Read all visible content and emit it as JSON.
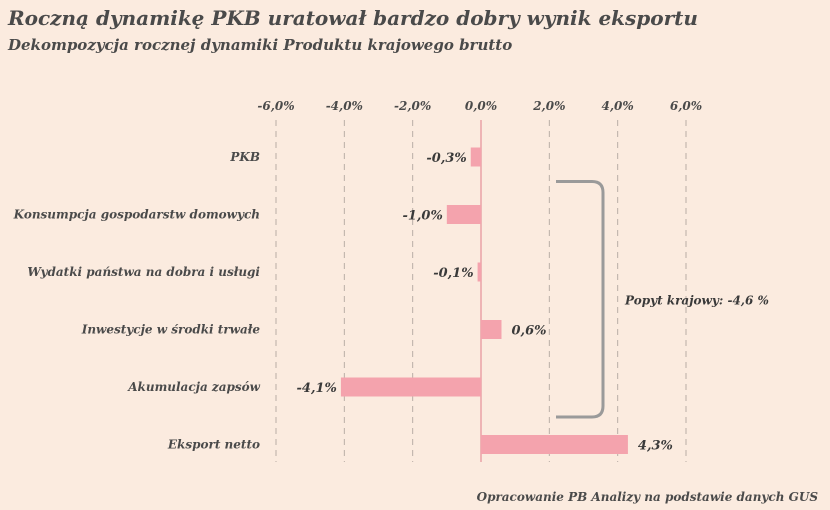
{
  "header": {
    "title": "Roczną dynamikę PKB uratował bardzo dobry wynik eksportu",
    "subtitle": "Dekompozycja rocznej dynamiki Produktu krajowego brutto"
  },
  "footer": {
    "source": "Opracowanie PB Analizy na podstawie danych GUS"
  },
  "colors": {
    "background": "#fbebdf",
    "bar": "#f4a3ad",
    "grid": "#b9aea6",
    "zero_line": "#e58f99",
    "bracket": "#9a9a9a"
  },
  "chart_data": {
    "type": "bar",
    "orientation": "horizontal",
    "title": "Roczną dynamikę PKB uratował bardzo dobry wynik eksportu",
    "subtitle": "Dekompozycja rocznej dynamiki Produktu krajowego brutto",
    "categories": [
      "PKB",
      "Konsumpcja gospodarstw domowych",
      "Wydatki państwa na dobra i usługi",
      "Inwestycje w środki trwałe",
      "Akumulacja zapsów",
      "Eksport netto"
    ],
    "values": [
      -0.3,
      -1.0,
      -0.1,
      0.6,
      -4.1,
      4.3
    ],
    "value_labels": [
      "-0,3%",
      "-1,0%",
      "-0,1%",
      "0,6%",
      "-4,1%",
      "4,3%"
    ],
    "xlim": [
      -6,
      6
    ],
    "ticks": [
      -6,
      -4,
      -2,
      0,
      2,
      4,
      6
    ],
    "tick_labels": [
      "-6,0%",
      "-4,0%",
      "-2,0%",
      "0,0%",
      "2,0%",
      "4,0%",
      "6,0%"
    ],
    "axis_position": "top",
    "grid": "vertical dashed",
    "annotation": {
      "text": "Popyt krajowy: -4,6 %",
      "spans_categories": [
        1,
        4
      ]
    }
  }
}
